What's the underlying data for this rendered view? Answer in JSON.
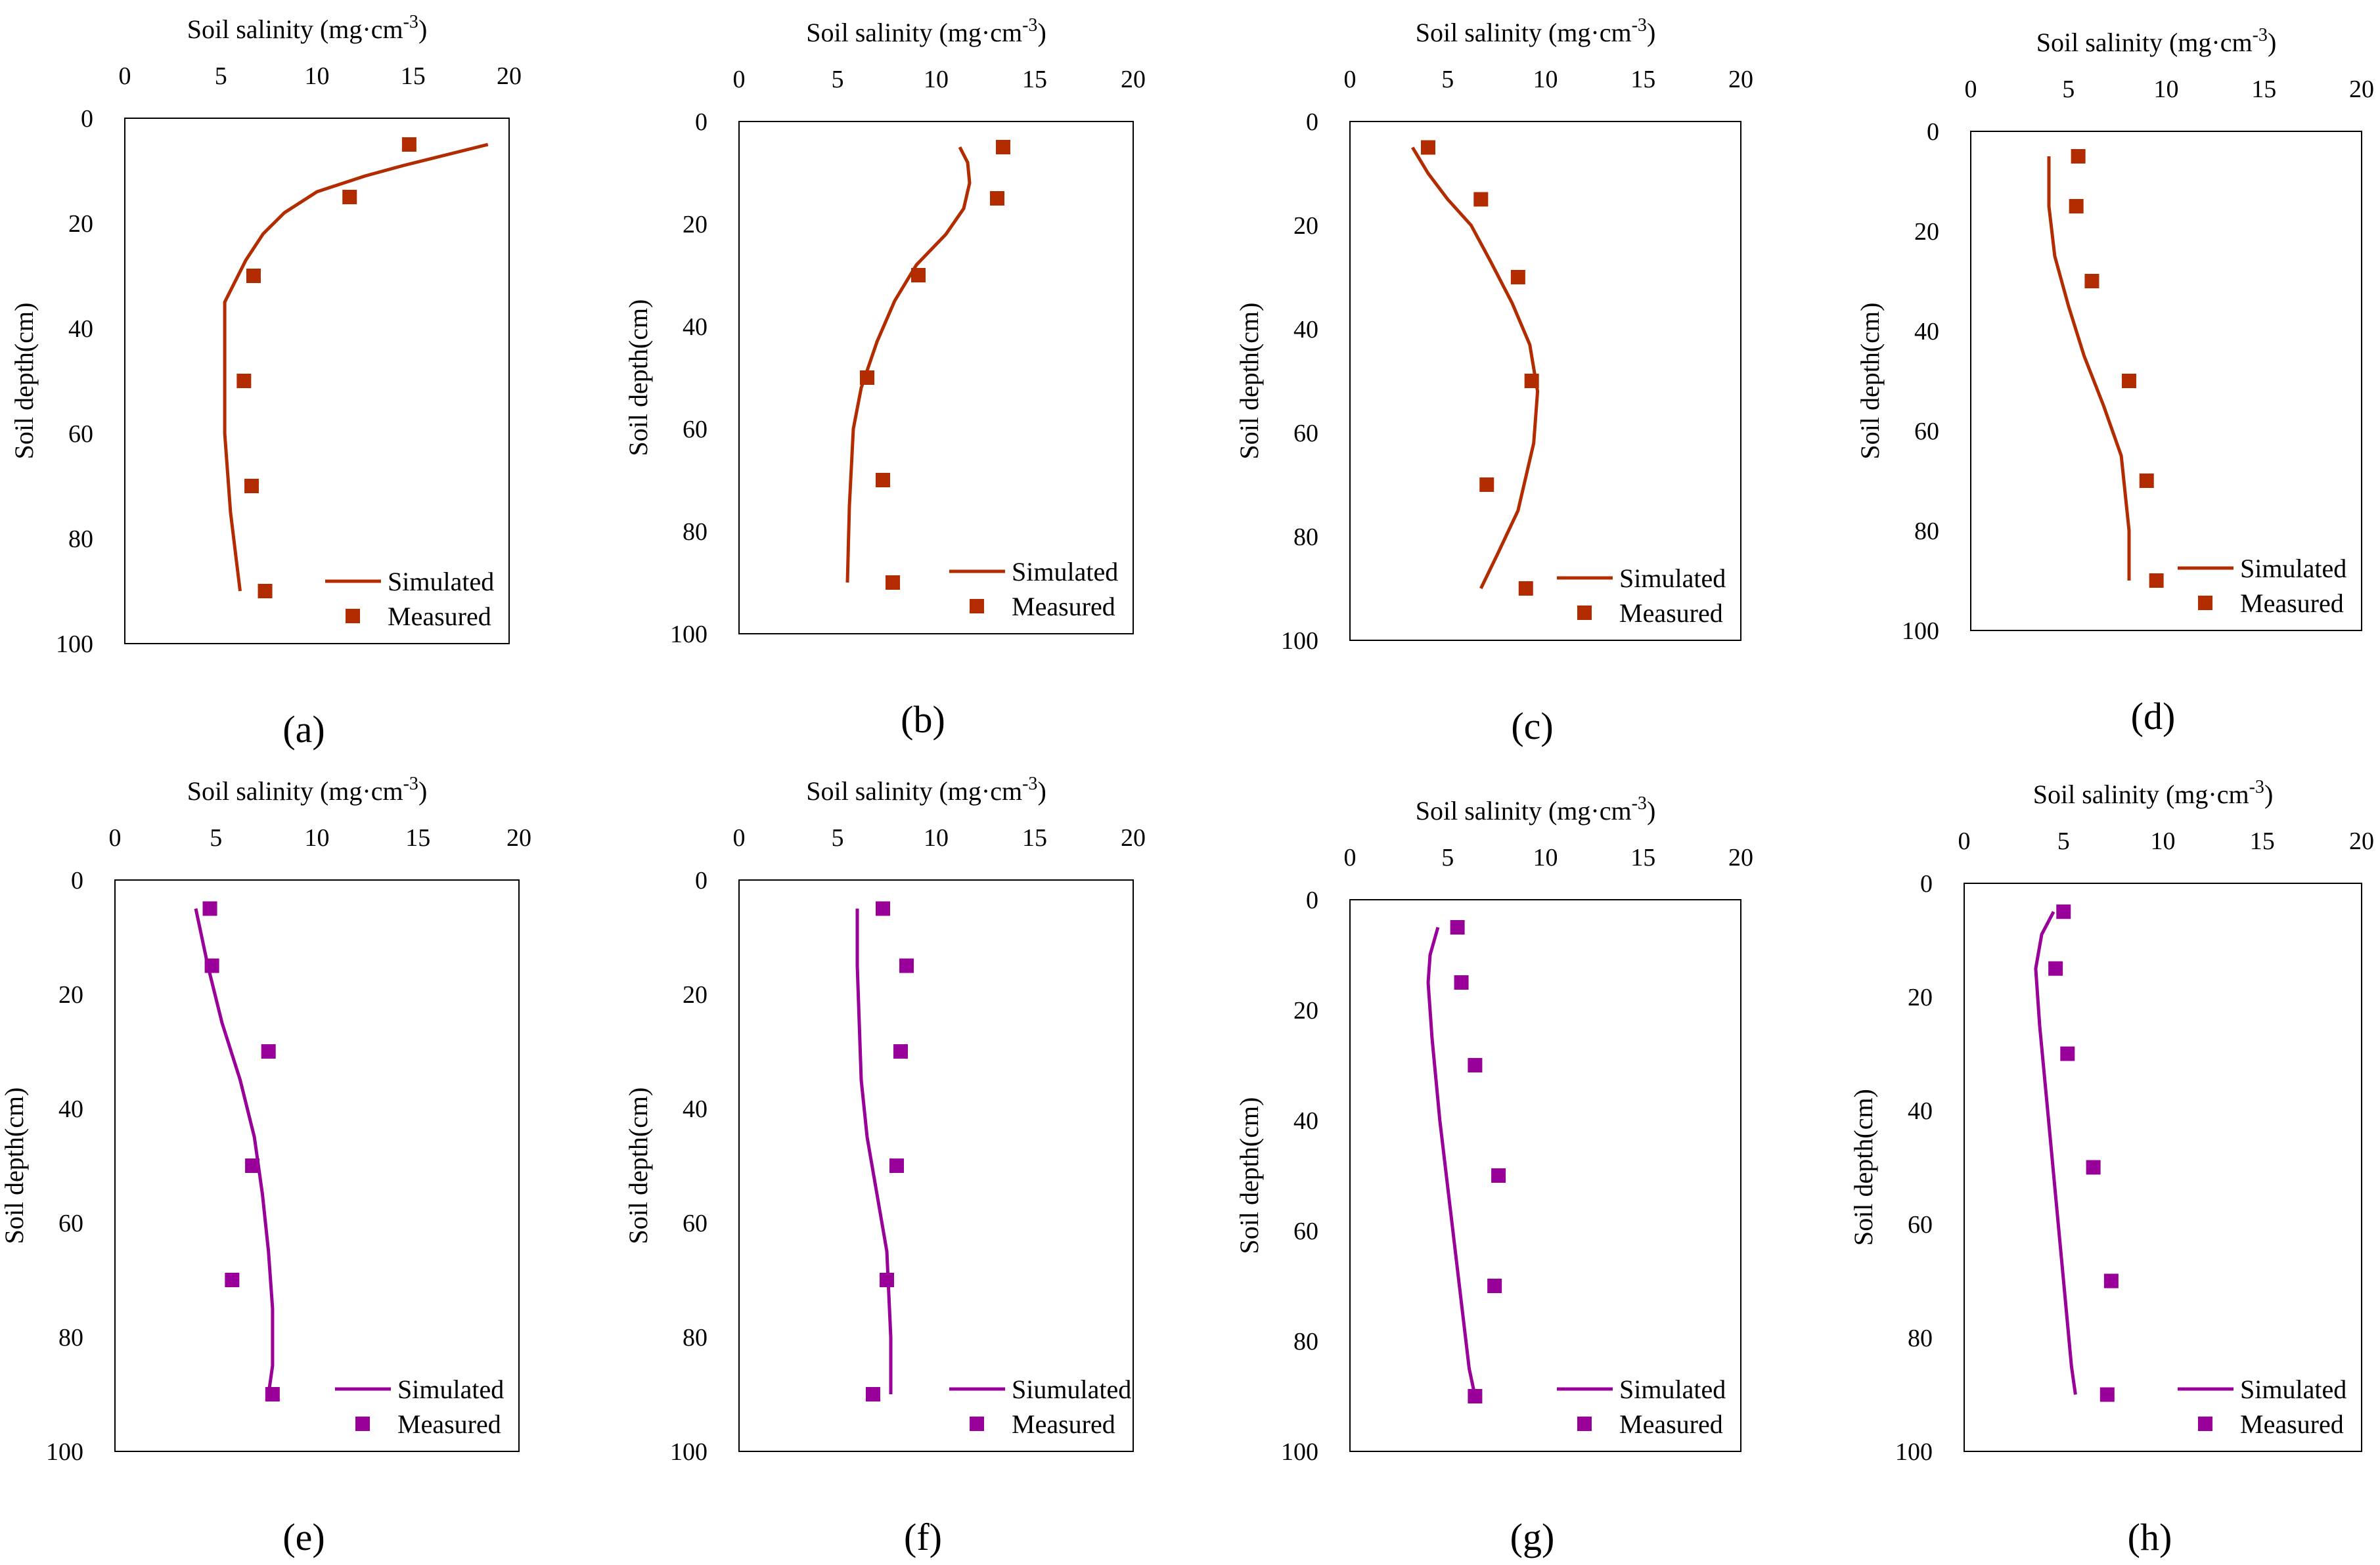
{
  "colors": {
    "red_series": "#b22c00",
    "purple_series": "#990099"
  },
  "xlabel_main": "Soil salinity (mg·cm",
  "xlabel_sup": "-3",
  "xlabel_close": ")",
  "ylabel": "Soil depth(cm)",
  "chart_data": [
    {
      "type": "line",
      "label": "(a)",
      "color": "#b22c00",
      "xlim": [
        0,
        20
      ],
      "ylim": [
        0,
        100
      ],
      "xticks": [
        "0",
        "5",
        "10",
        "15",
        "20"
      ],
      "yticks": [
        "0",
        "20",
        "40",
        "60",
        "80",
        "100"
      ],
      "legend": [
        "Simulated",
        "Measured"
      ],
      "simulated": {
        "x": [
          18.9,
          14.5,
          12.5,
          10.0,
          8.3,
          7.2,
          6.3,
          5.2,
          5.2,
          5.2,
          5.5,
          6.0
        ],
        "y": [
          5,
          9,
          11,
          14,
          18,
          22,
          27,
          35,
          45,
          60,
          75,
          90
        ]
      },
      "measured": {
        "x": [
          14.8,
          11.7,
          6.7,
          6.2,
          6.6,
          7.3
        ],
        "y": [
          5,
          15,
          30,
          50,
          70,
          90
        ]
      }
    },
    {
      "type": "line",
      "label": "(b)",
      "color": "#b22c00",
      "xlim": [
        0,
        20
      ],
      "ylim": [
        0,
        100
      ],
      "xticks": [
        "0",
        "5",
        "10",
        "15",
        "20"
      ],
      "yticks": [
        "0",
        "20",
        "40",
        "60",
        "80",
        "100"
      ],
      "legend": [
        "Simulated",
        "Measured"
      ],
      "simulated": {
        "x": [
          11.2,
          11.6,
          11.7,
          11.4,
          10.5,
          9.0,
          7.9,
          7.0,
          6.2,
          5.8,
          5.6,
          5.5
        ],
        "y": [
          5,
          8,
          12,
          17,
          22,
          28,
          35,
          43,
          52,
          60,
          75,
          90
        ]
      },
      "measured": {
        "x": [
          13.4,
          13.1,
          9.1,
          6.5,
          7.3,
          7.8
        ],
        "y": [
          5,
          15,
          30,
          50,
          70,
          90
        ]
      }
    },
    {
      "type": "line",
      "label": "(c)",
      "color": "#b22c00",
      "xlim": [
        0,
        20
      ],
      "ylim": [
        0,
        100
      ],
      "xticks": [
        "0",
        "5",
        "10",
        "15",
        "20"
      ],
      "yticks": [
        "0",
        "20",
        "40",
        "60",
        "80",
        "100"
      ],
      "legend": [
        "Simulated",
        "Measured"
      ],
      "simulated": {
        "x": [
          3.2,
          4.0,
          5.0,
          6.2,
          7.2,
          8.3,
          9.2,
          9.6,
          9.4,
          8.6,
          7.6,
          6.7
        ],
        "y": [
          5,
          10,
          15,
          20,
          27,
          35,
          43,
          52,
          62,
          75,
          83,
          90
        ]
      },
      "measured": {
        "x": [
          4.0,
          6.7,
          8.6,
          9.3,
          7.0,
          9.0
        ],
        "y": [
          5,
          15,
          30,
          50,
          70,
          90
        ]
      }
    },
    {
      "type": "line",
      "label": "(d)",
      "color": "#b22c00",
      "xlim": [
        0,
        20
      ],
      "ylim": [
        0,
        100
      ],
      "xticks": [
        "0",
        "5",
        "10",
        "15",
        "20"
      ],
      "yticks": [
        "0",
        "20",
        "40",
        "60",
        "80",
        "100"
      ],
      "legend": [
        "Simulated",
        "Measured"
      ],
      "simulated": {
        "x": [
          4.0,
          4.0,
          4.3,
          5.0,
          5.8,
          6.8,
          7.7,
          8.1,
          8.1
        ],
        "y": [
          5,
          15,
          25,
          35,
          45,
          55,
          65,
          80,
          90
        ]
      },
      "measured": {
        "x": [
          5.5,
          5.4,
          6.2,
          8.1,
          9.0,
          9.5
        ],
        "y": [
          5,
          15,
          30,
          50,
          70,
          90
        ]
      }
    },
    {
      "type": "line",
      "label": "(e)",
      "color": "#990099",
      "xlim": [
        0,
        20
      ],
      "ylim": [
        0,
        100
      ],
      "xticks": [
        "0",
        "5",
        "10",
        "15",
        "20"
      ],
      "yticks": [
        "0",
        "20",
        "40",
        "60",
        "80",
        "100"
      ],
      "legend": [
        "Simulated",
        "Measured"
      ],
      "simulated": {
        "x": [
          4.0,
          4.6,
          5.3,
          6.2,
          6.9,
          7.3,
          7.6,
          7.8,
          7.8,
          7.6
        ],
        "y": [
          5,
          15,
          25,
          35,
          45,
          55,
          65,
          75,
          85,
          90
        ]
      },
      "measured": {
        "x": [
          4.7,
          4.8,
          7.6,
          6.8,
          5.8,
          7.8
        ],
        "y": [
          5,
          15,
          30,
          50,
          70,
          90
        ]
      }
    },
    {
      "type": "line",
      "label": "(f)",
      "color": "#990099",
      "xlim": [
        0,
        20
      ],
      "ylim": [
        0,
        100
      ],
      "xticks": [
        "0",
        "5",
        "10",
        "15",
        "20"
      ],
      "yticks": [
        "0",
        "20",
        "40",
        "60",
        "80",
        "100"
      ],
      "legend": [
        "Siumulated",
        "Measured"
      ],
      "simulated": {
        "x": [
          6.0,
          6.0,
          6.1,
          6.2,
          6.5,
          7.0,
          7.5,
          7.7,
          7.7
        ],
        "y": [
          5,
          15,
          25,
          35,
          45,
          55,
          65,
          80,
          90
        ]
      },
      "measured": {
        "x": [
          7.3,
          8.5,
          8.2,
          8.0,
          7.5,
          6.8
        ],
        "y": [
          5,
          15,
          30,
          50,
          70,
          90
        ]
      }
    },
    {
      "type": "line",
      "label": "(g)",
      "color": "#990099",
      "xlim": [
        0,
        20
      ],
      "ylim": [
        0,
        100
      ],
      "xticks": [
        "0",
        "5",
        "10",
        "15",
        "20"
      ],
      "yticks": [
        "0",
        "20",
        "40",
        "60",
        "80",
        "100"
      ],
      "legend": [
        "Simulated",
        "Measured"
      ],
      "simulated": {
        "x": [
          4.5,
          4.1,
          4.0,
          4.2,
          4.6,
          5.1,
          5.6,
          6.1,
          6.4
        ],
        "y": [
          5,
          10,
          15,
          25,
          40,
          55,
          70,
          85,
          90
        ]
      },
      "measured": {
        "x": [
          5.5,
          5.7,
          6.4,
          7.6,
          7.4,
          6.4
        ],
        "y": [
          5,
          15,
          30,
          50,
          70,
          90
        ]
      }
    },
    {
      "type": "line",
      "label": "(h)",
      "color": "#990099",
      "xlim": [
        0,
        20
      ],
      "ylim": [
        0,
        100
      ],
      "xticks": [
        "0",
        "5",
        "10",
        "15",
        "20"
      ],
      "yticks": [
        "0",
        "20",
        "40",
        "60",
        "80",
        "100"
      ],
      "legend": [
        "Simulated",
        "Measured"
      ],
      "simulated": {
        "x": [
          4.5,
          3.9,
          3.6,
          3.8,
          4.2,
          4.6,
          5.0,
          5.4,
          5.6
        ],
        "y": [
          5,
          9,
          15,
          25,
          40,
          55,
          70,
          85,
          90
        ]
      },
      "measured": {
        "x": [
          5.0,
          4.6,
          5.2,
          6.5,
          7.4,
          7.2
        ],
        "y": [
          5,
          15,
          30,
          50,
          70,
          90
        ]
      }
    }
  ]
}
